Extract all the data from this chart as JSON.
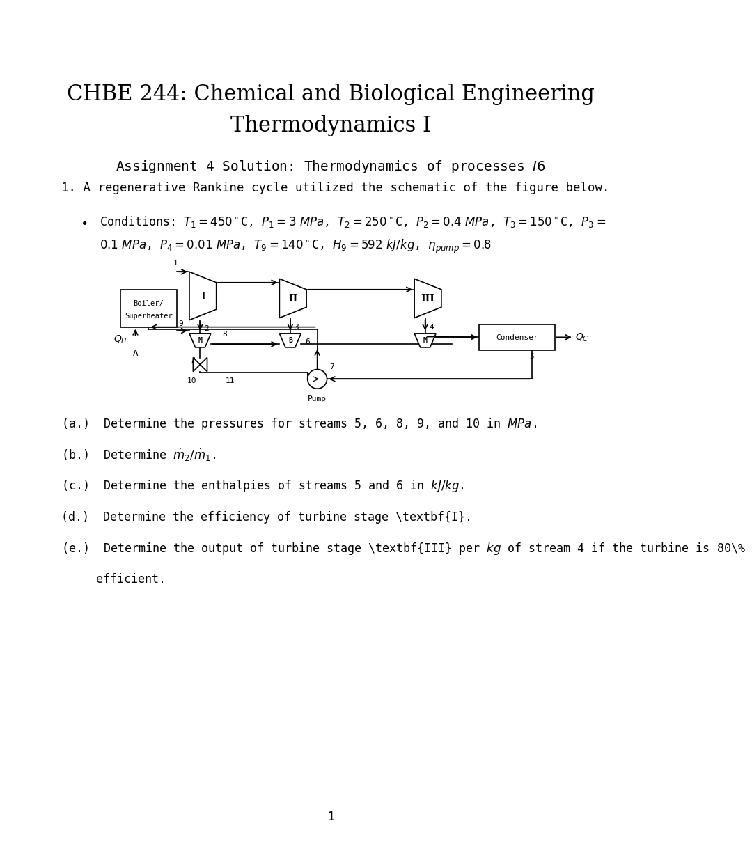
{
  "title_line1": "CHBE 244: Chemical and Biological Engineering",
  "title_line2": "Thermodynamics I",
  "subtitle": "Assignment 4 Solution: Thermodynamics of processes $\\mathit{I6}$",
  "problem_intro": "1. A regenerative Rankine cycle utilized the schematic of the figure below.",
  "cond1": "Conditions: $T_1 = 450^\\circ$C, $P_1 = 3\\ MPa$, $T_2 = 250^\\circ$C, $P_2 = 0.4\\ MPa$, $T_3 = 150^\\circ$C, $P_3 =$",
  "cond2": "$0.1\\ MPa$, $P_4 = 0.01\\ MPa$, $T_9 = 140^\\circ$C, $H_9 = 592\\ kJ/kg$, $\\eta_{pump} = 0.8$",
  "part_a": "(a.)  Determine the pressures for streams 5, 6, 8, 9, and 10 in $MPa$.",
  "part_b": "(b.)  Determine $\\dot{m}_2/\\dot{m}_1$.",
  "part_c": "(c.)  Determine the enthalpies of streams 5 and 6 in $kJ/kg$.",
  "part_d": "(d.)  Determine the efficiency of turbine stage \\textbf{I}.",
  "part_e1": "(e.)  Determine the output of turbine stage \\textbf{III} per $kg$ of stream 4 if the turbine is 80\\%",
  "part_e2": "      efficient.",
  "page_num": "1",
  "bg_color": "#ffffff",
  "text_color": "#000000"
}
